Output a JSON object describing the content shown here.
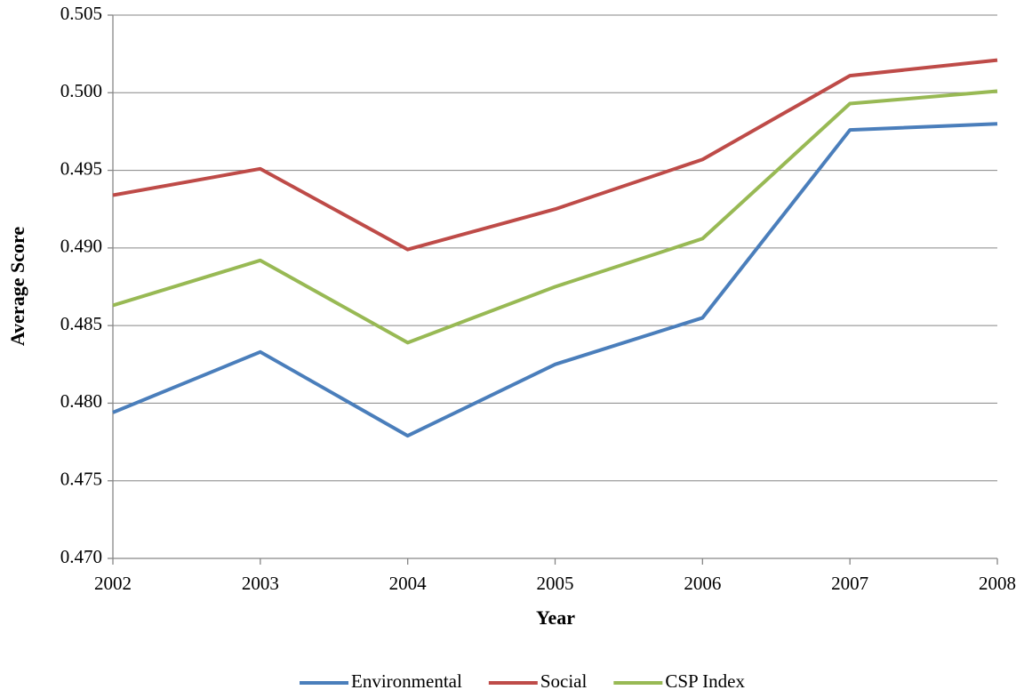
{
  "chart_data": {
    "type": "line",
    "x_label": "Year",
    "y_label": "Average Score",
    "x": [
      2002,
      2003,
      2004,
      2005,
      2006,
      2007,
      2008
    ],
    "xlim": [
      2002,
      2008
    ],
    "xticks": [
      2002,
      2003,
      2004,
      2005,
      2006,
      2007,
      2008
    ],
    "ylim": [
      0.47,
      0.505
    ],
    "yticks": [
      {
        "value": 0.47,
        "label": "0.470"
      },
      0.475,
      {
        "value": 0.48,
        "label": "0.480"
      },
      0.485,
      {
        "value": 0.49,
        "label": "0.490"
      },
      0.495,
      {
        "value": 0.5,
        "label": "0.500"
      },
      0.505
    ],
    "grid": true,
    "legend": "bottom",
    "series": [
      {
        "name": "Environmental",
        "color": "#4a7ebb",
        "values": [
          0.4794,
          0.4833,
          0.4779,
          0.4825,
          0.4855,
          0.4976,
          0.498
        ]
      },
      {
        "name": "Social",
        "color": "#be4b48",
        "values": [
          0.4934,
          0.4951,
          0.4899,
          0.4925,
          0.4957,
          0.5011,
          0.5021
        ]
      },
      {
        "name": "CSP Index",
        "color": "#98b954",
        "values": [
          0.4863,
          0.4892,
          0.4839,
          0.4875,
          0.4906,
          0.4993,
          0.5001
        ]
      }
    ]
  }
}
